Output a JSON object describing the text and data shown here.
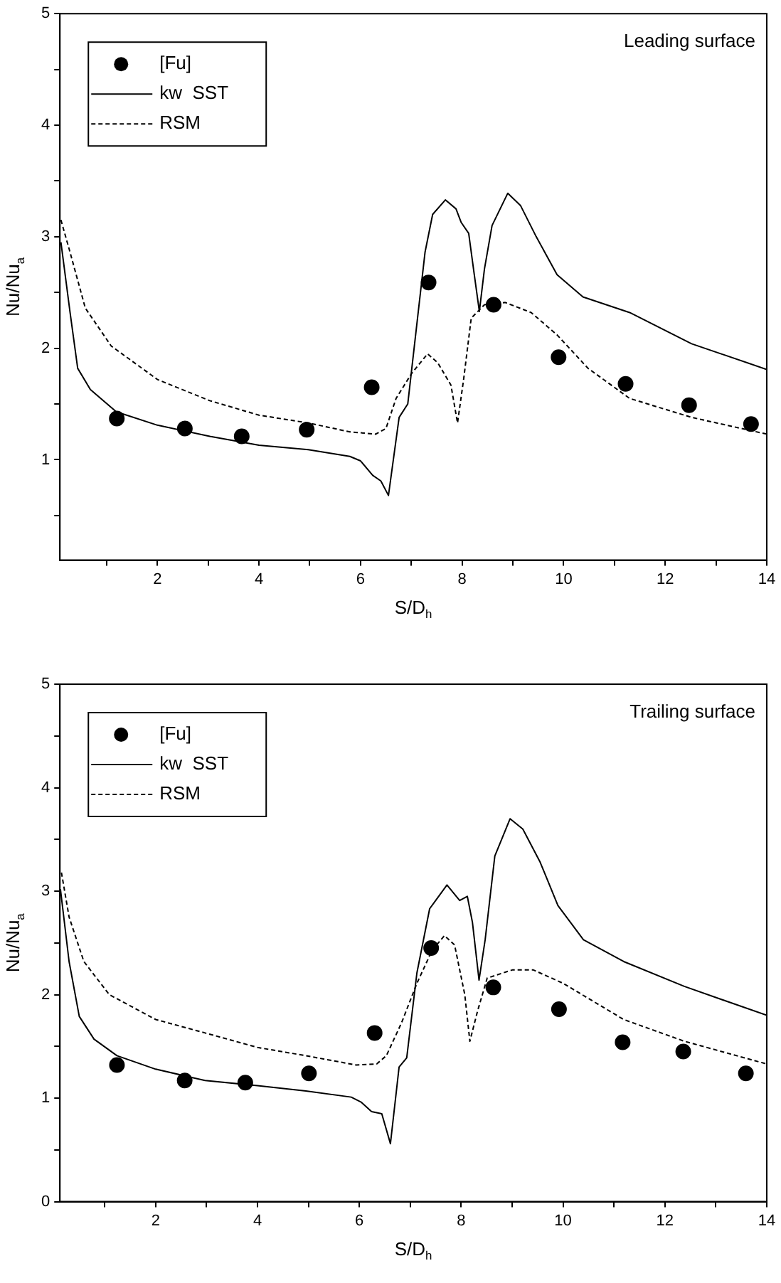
{
  "chart_data": [
    {
      "type": "line",
      "xlabel": "S/D$_{h}$",
      "ylabel": "Nu/Nu$_{a}$",
      "annotations": [
        "Leading surface"
      ],
      "xlim": [
        0.08,
        14
      ],
      "ylim": [
        0.1,
        5
      ],
      "xticks": [
        {
          "value": 1,
          "label": null
        },
        2,
        {
          "value": 3,
          "label": null
        },
        4,
        {
          "value": 5,
          "label": null
        },
        6,
        {
          "value": 7,
          "label": null
        },
        8,
        {
          "value": 9,
          "label": null
        },
        10,
        {
          "value": 11,
          "label": null
        },
        12,
        {
          "value": 13,
          "label": null
        },
        14
      ],
      "yticks": [
        {
          "value": 0.5,
          "label": null
        },
        1,
        {
          "value": 1.5,
          "label": null
        },
        2,
        {
          "value": 2.5,
          "label": null
        },
        3,
        {
          "value": 3.5,
          "label": null
        },
        4,
        {
          "value": 4.5,
          "label": null
        },
        5
      ],
      "grid": false,
      "legend": "top left",
      "series": [
        {
          "name": "[Fu]",
          "type": "scatter",
          "color": "#000000",
          "marker": "circle",
          "x": [
            1.2,
            2.54,
            3.66,
            4.94,
            6.22,
            7.34,
            8.62,
            9.9,
            11.22,
            12.47,
            13.69
          ],
          "values": [
            1.37,
            1.28,
            1.21,
            1.27,
            1.65,
            2.59,
            2.39,
            1.92,
            1.68,
            1.49,
            1.32
          ]
        },
        {
          "name": "kw  SST",
          "color": "#000000",
          "marker": "none",
          "line_style": "solid",
          "x": [
            0.1,
            0.28,
            0.43,
            0.68,
            1.19,
            2.0,
            3.03,
            4.0,
            4.97,
            5.79,
            6.0,
            6.24,
            6.4,
            6.55,
            6.76,
            6.93,
            7.11,
            7.27,
            7.42,
            7.67,
            7.88,
            7.98,
            8.13,
            8.24,
            8.34,
            8.44,
            8.59,
            8.9,
            9.15,
            9.46,
            9.87,
            10.38,
            11.3,
            12.52,
            14.0
          ],
          "values": [
            2.95,
            2.32,
            1.82,
            1.63,
            1.43,
            1.31,
            1.21,
            1.13,
            1.09,
            1.03,
            0.99,
            0.86,
            0.81,
            0.68,
            1.38,
            1.5,
            2.22,
            2.86,
            3.2,
            3.33,
            3.25,
            3.13,
            3.03,
            2.66,
            2.33,
            2.71,
            3.1,
            3.39,
            3.28,
            3.0,
            2.66,
            2.46,
            2.32,
            2.04,
            1.81
          ]
        },
        {
          "name": "RSM",
          "color": "#000000",
          "marker": "none",
          "line_style": "dashed",
          "x": [
            0.1,
            0.28,
            0.58,
            1.09,
            2.0,
            3.03,
            4.0,
            4.97,
            5.79,
            6.3,
            6.5,
            6.7,
            7.0,
            7.32,
            7.52,
            7.78,
            7.91,
            8.03,
            8.18,
            8.44,
            8.85,
            9.36,
            9.87,
            10.48,
            11.3,
            12.52,
            14.0
          ],
          "values": [
            3.15,
            2.86,
            2.36,
            2.02,
            1.72,
            1.53,
            1.4,
            1.33,
            1.25,
            1.23,
            1.28,
            1.55,
            1.77,
            1.95,
            1.87,
            1.67,
            1.33,
            1.72,
            2.27,
            2.39,
            2.41,
            2.32,
            2.12,
            1.82,
            1.55,
            1.38,
            1.23
          ]
        }
      ]
    },
    {
      "type": "line",
      "xlabel": "S/D$_{h}$",
      "ylabel": "Nu/Nu$_{a}$",
      "annotations": [
        "Trailing surface"
      ],
      "xlim": [
        0.12,
        14
      ],
      "ylim": [
        0,
        5
      ],
      "xticks": [
        {
          "value": 1,
          "label": null
        },
        2,
        {
          "value": 3,
          "label": null
        },
        4,
        {
          "value": 5,
          "label": null
        },
        6,
        {
          "value": 7,
          "label": null
        },
        8,
        {
          "value": 9,
          "label": null
        },
        10,
        {
          "value": 11,
          "label": null
        },
        12,
        {
          "value": 13,
          "label": null
        },
        14
      ],
      "yticks": [
        0,
        {
          "value": 0.5,
          "label": null
        },
        1,
        {
          "value": 1.5,
          "label": null
        },
        2,
        {
          "value": 2.5,
          "label": null
        },
        3,
        {
          "value": 3.5,
          "label": null
        },
        4,
        {
          "value": 4.5,
          "label": null
        },
        5
      ],
      "grid": false,
      "legend": "top left",
      "series": [
        {
          "name": "[Fu]",
          "type": "scatter",
          "color": "#000000",
          "marker": "circle",
          "x": [
            1.24,
            2.57,
            3.76,
            5.01,
            6.3,
            7.41,
            8.63,
            9.92,
            11.17,
            12.36,
            13.59
          ],
          "values": [
            1.32,
            1.17,
            1.15,
            1.24,
            1.63,
            2.45,
            2.07,
            1.86,
            1.54,
            1.45,
            1.24
          ]
        },
        {
          "name": "kw  SST",
          "color": "#000000",
          "marker": "none",
          "line_style": "solid",
          "x": [
            0.13,
            0.3,
            0.5,
            0.79,
            1.24,
            2.0,
            2.97,
            4.0,
            4.95,
            5.84,
            6.04,
            6.24,
            6.44,
            6.61,
            6.78,
            6.93,
            7.13,
            7.38,
            7.72,
            7.97,
            8.12,
            8.22,
            8.35,
            8.47,
            8.66,
            8.96,
            9.21,
            9.55,
            9.9,
            10.4,
            11.19,
            12.38,
            14.0
          ],
          "values": [
            3.02,
            2.32,
            1.79,
            1.57,
            1.41,
            1.28,
            1.17,
            1.12,
            1.07,
            1.01,
            0.96,
            0.87,
            0.85,
            0.56,
            1.3,
            1.39,
            2.21,
            2.83,
            3.06,
            2.91,
            2.95,
            2.7,
            2.14,
            2.53,
            3.34,
            3.7,
            3.6,
            3.28,
            2.86,
            2.53,
            2.32,
            2.08,
            1.8
          ]
        },
        {
          "name": "RSM",
          "color": "#000000",
          "marker": "none",
          "line_style": "dashed",
          "x": [
            0.15,
            0.3,
            0.59,
            1.09,
            2.0,
            2.97,
            4.0,
            4.95,
            5.94,
            6.34,
            6.53,
            6.83,
            7.13,
            7.43,
            7.67,
            7.87,
            8.07,
            8.17,
            8.32,
            8.51,
            9.01,
            9.41,
            10.0,
            11.19,
            12.38,
            14.0
          ],
          "values": [
            3.18,
            2.75,
            2.32,
            2.0,
            1.76,
            1.63,
            1.49,
            1.41,
            1.32,
            1.33,
            1.41,
            1.73,
            2.11,
            2.43,
            2.57,
            2.48,
            2.0,
            1.55,
            1.84,
            2.16,
            2.24,
            2.24,
            2.11,
            1.76,
            1.55,
            1.33
          ]
        }
      ]
    }
  ]
}
